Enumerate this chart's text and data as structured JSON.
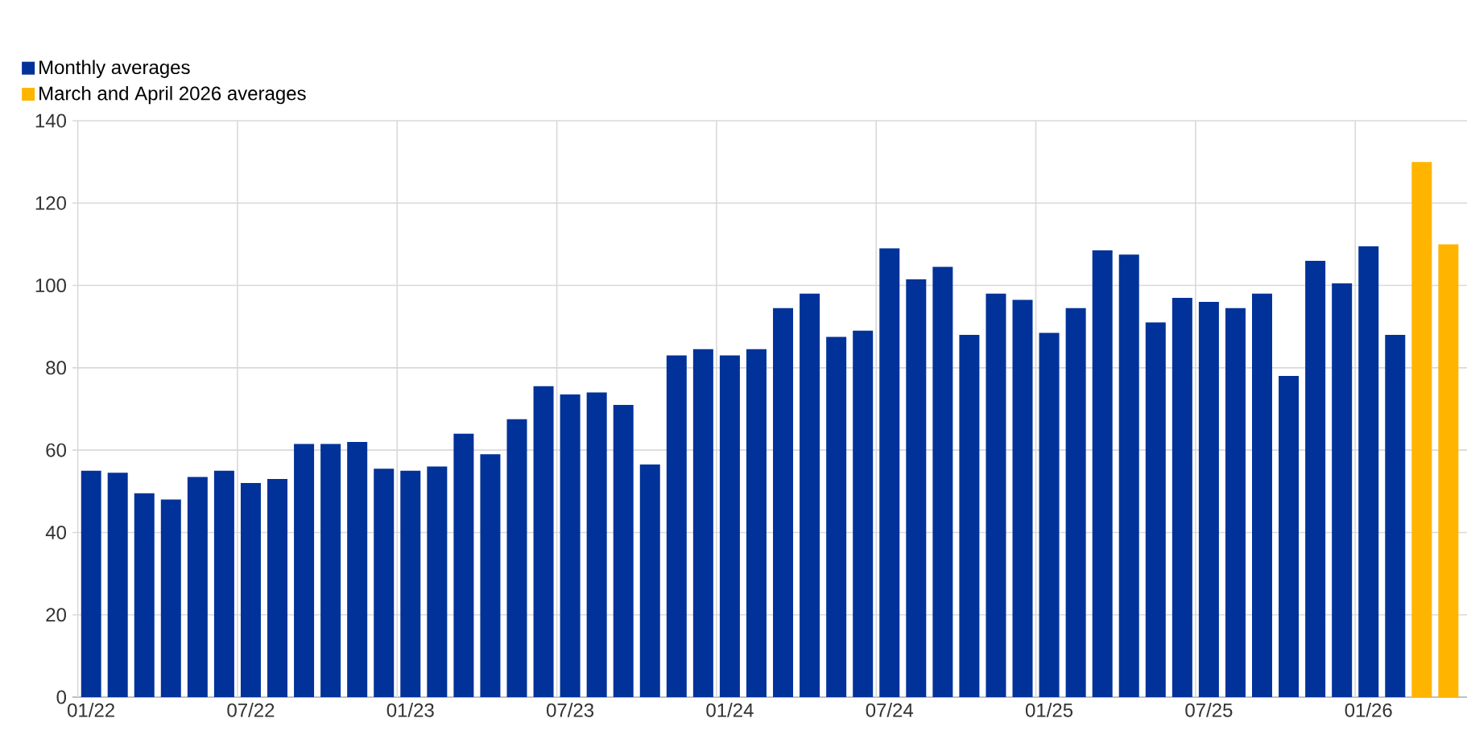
{
  "chart_data": {
    "type": "bar",
    "categories": [
      "01/22",
      null,
      null,
      null,
      null,
      null,
      "07/22",
      null,
      null,
      null,
      null,
      null,
      "01/23",
      null,
      null,
      null,
      null,
      null,
      "07/23",
      null,
      null,
      null,
      null,
      null,
      "01/24",
      null,
      null,
      null,
      null,
      null,
      "07/24",
      null,
      null,
      null,
      null,
      null,
      "01/25",
      null,
      null,
      null,
      null,
      null,
      "07/25",
      null,
      null,
      null,
      null,
      null,
      "01/26",
      null,
      null,
      null
    ],
    "series": [
      {
        "name": "Monthly averages",
        "color": "#003299",
        "values": [
          55,
          54.5,
          49.5,
          48,
          53.5,
          55,
          52,
          53,
          61.5,
          61.5,
          62,
          55.5,
          55,
          56,
          64,
          59,
          67.5,
          75.5,
          73.5,
          74,
          71,
          56.5,
          83,
          84.5,
          83,
          84.5,
          94.5,
          98,
          87.5,
          89,
          109,
          101.5,
          104.5,
          88,
          98,
          96.5,
          88.5,
          94.5,
          108.5,
          107.5,
          91,
          97,
          96,
          94.5,
          98,
          78,
          106,
          100.5,
          109.5,
          88,
          null,
          null
        ]
      },
      {
        "name": "March and April 2026 averages",
        "color": "#ffb400",
        "values": [
          null,
          null,
          null,
          null,
          null,
          null,
          null,
          null,
          null,
          null,
          null,
          null,
          null,
          null,
          null,
          null,
          null,
          null,
          null,
          null,
          null,
          null,
          null,
          null,
          null,
          null,
          null,
          null,
          null,
          null,
          null,
          null,
          null,
          null,
          null,
          null,
          null,
          null,
          null,
          null,
          null,
          null,
          null,
          null,
          null,
          null,
          null,
          null,
          null,
          null,
          130,
          110
        ]
      }
    ],
    "ylim": [
      0,
      140
    ],
    "yticks": [
      0,
      20,
      40,
      60,
      80,
      100,
      120,
      140
    ],
    "grid": true,
    "legend": "top left"
  }
}
